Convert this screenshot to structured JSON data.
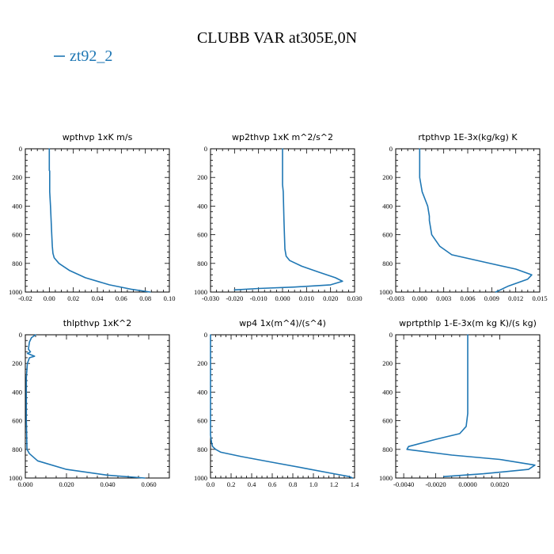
{
  "figure": {
    "title": "CLUBB VAR at305E,0N",
    "legend": {
      "label": "zt92_2",
      "color": "#1f77b4"
    }
  },
  "chart_data": [
    {
      "type": "line",
      "title": "wpthvp   1xK m/s",
      "xlim": [
        -0.02,
        0.1
      ],
      "xticks": [
        -0.02,
        0.0,
        0.02,
        0.04,
        0.06,
        0.08,
        0.1
      ],
      "xtick_labels": [
        "-0.02",
        "0.00",
        "0.02",
        "0.04",
        "0.06",
        "0.08",
        "0.10"
      ],
      "ylim": [
        0,
        1000
      ],
      "yticks": [
        0,
        200,
        400,
        600,
        800,
        1000
      ],
      "ytick_labels": [
        "0",
        "200",
        "400",
        "600",
        "800",
        "1000"
      ],
      "y_inverted": true,
      "series": [
        {
          "name": "zt92_2",
          "x": [
            0.0,
            0.0,
            0.0003,
            0.0003,
            0.001,
            0.0015,
            0.002,
            0.0025,
            0.003,
            0.004,
            0.008,
            0.017,
            0.03,
            0.05,
            0.068,
            0.084
          ],
          "y": [
            0,
            150,
            155,
            300,
            400,
            500,
            600,
            680,
            730,
            760,
            800,
            850,
            900,
            950,
            980,
            1000
          ]
        }
      ]
    },
    {
      "type": "line",
      "title": "wp2thvp   1xK m^2/s^2",
      "xlim": [
        -0.03,
        0.03
      ],
      "xticks": [
        -0.03,
        -0.02,
        -0.01,
        0.0,
        0.01,
        0.02,
        0.03
      ],
      "xtick_labels": [
        "-0.030",
        "-0.020",
        "-0.010",
        "0.000",
        "0.010",
        "0.020",
        "0.030"
      ],
      "ylim": [
        0,
        1000
      ],
      "yticks": [
        0,
        200,
        400,
        600,
        800,
        1000
      ],
      "ytick_labels": [
        "0",
        "200",
        "400",
        "600",
        "800",
        "1000"
      ],
      "y_inverted": true,
      "series": [
        {
          "name": "zt92_2",
          "x": [
            0.0,
            0.0,
            0.0003,
            0.0006,
            0.0008,
            0.001,
            0.0015,
            0.003,
            0.008,
            0.015,
            0.022,
            0.025,
            0.02,
            0.005,
            -0.01,
            -0.02
          ],
          "y": [
            0,
            250,
            300,
            500,
            600,
            700,
            750,
            780,
            820,
            860,
            900,
            925,
            950,
            965,
            975,
            985
          ]
        }
      ]
    },
    {
      "type": "line",
      "title": "rtpthvp   1E-3x(kg/kg) K",
      "xlim": [
        -0.003,
        0.015
      ],
      "xticks": [
        -0.003,
        0.0,
        0.003,
        0.006,
        0.009,
        0.012,
        0.015
      ],
      "xtick_labels": [
        "-0.003",
        "0.000",
        "0.003",
        "0.006",
        "0.009",
        "0.012",
        "0.015"
      ],
      "ylim": [
        0,
        1000
      ],
      "yticks": [
        0,
        200,
        400,
        600,
        800,
        1000
      ],
      "ytick_labels": [
        "0",
        "200",
        "400",
        "600",
        "800",
        "1000"
      ],
      "y_inverted": true,
      "series": [
        {
          "name": "zt92_2",
          "x": [
            0.0,
            0.0,
            0.0003,
            0.001,
            0.0012,
            0.0012,
            0.0015,
            0.0025,
            0.004,
            0.008,
            0.012,
            0.014,
            0.0135,
            0.011,
            0.0095
          ],
          "y": [
            0,
            200,
            300,
            400,
            470,
            500,
            600,
            680,
            740,
            790,
            840,
            880,
            910,
            960,
            1000
          ]
        }
      ]
    },
    {
      "type": "line",
      "title": "thlpthvp   1xK^2",
      "xlim": [
        0.0,
        0.07
      ],
      "xticks": [
        0.0,
        0.02,
        0.04,
        0.06
      ],
      "xtick_labels": [
        "0.000",
        "0.020",
        "0.040",
        "0.060"
      ],
      "ylim": [
        0,
        1000
      ],
      "yticks": [
        0,
        200,
        400,
        600,
        800,
        1000
      ],
      "ytick_labels": [
        "0",
        "200",
        "400",
        "600",
        "800",
        "1000"
      ],
      "y_inverted": true,
      "series": [
        {
          "name": "zt92_2",
          "x": [
            0.005,
            0.003,
            0.002,
            0.0015,
            0.0025,
            0.001,
            0.0045,
            0.002,
            0.001,
            0.0005,
            0.0005,
            0.0008,
            0.002,
            0.006,
            0.02,
            0.04,
            0.058
          ],
          "y": [
            0,
            20,
            50,
            100,
            120,
            130,
            150,
            160,
            200,
            300,
            600,
            800,
            830,
            880,
            940,
            980,
            1000
          ]
        }
      ]
    },
    {
      "type": "line",
      "title": "wp4   1x(m^4)/(s^4)",
      "xlim": [
        0.0,
        1.4
      ],
      "xticks": [
        0.0,
        0.2,
        0.4,
        0.6,
        0.8,
        1.0,
        1.2,
        1.4
      ],
      "xtick_labels": [
        "0.0",
        "0.2",
        "0.4",
        "0.6",
        "0.8",
        "1.0",
        "1.2",
        "1.4"
      ],
      "ylim": [
        0,
        1000
      ],
      "yticks": [
        0,
        200,
        400,
        600,
        800,
        1000
      ],
      "ytick_labels": [
        "0",
        "200",
        "400",
        "600",
        "800",
        "1000"
      ],
      "y_inverted": true,
      "series": [
        {
          "name": "zt92_2",
          "x": [
            0.0,
            0.0,
            0.01,
            0.02,
            0.05,
            0.1,
            0.3,
            0.6,
            0.9,
            1.2,
            1.35,
            1.38
          ],
          "y": [
            0,
            700,
            750,
            780,
            800,
            820,
            850,
            890,
            930,
            970,
            990,
            1000
          ]
        }
      ]
    },
    {
      "type": "line",
      "title": "wprtpthlp   1-E-3x(m kg K)/(s kg)",
      "xlim": [
        -0.0045,
        0.0045
      ],
      "xticks": [
        -0.004,
        -0.002,
        0.0,
        0.002
      ],
      "xtick_labels": [
        "-0.0040",
        "-0.0020",
        "0.0000",
        "0.0020"
      ],
      "ylim": [
        0,
        1000
      ],
      "yticks": [
        0,
        200,
        400,
        600,
        800,
        1000
      ],
      "ytick_labels": [
        "0",
        "200",
        "400",
        "600",
        "800",
        "1000"
      ],
      "y_inverted": true,
      "series": [
        {
          "name": "zt92_2",
          "x": [
            0.0,
            0.0,
            -0.0001,
            -0.0005,
            -0.002,
            -0.0037,
            -0.0038,
            -0.001,
            0.002,
            0.0042,
            0.0038,
            0.001,
            -0.0015
          ],
          "y": [
            0,
            550,
            640,
            690,
            730,
            780,
            800,
            840,
            870,
            910,
            940,
            970,
            990
          ]
        }
      ]
    }
  ]
}
